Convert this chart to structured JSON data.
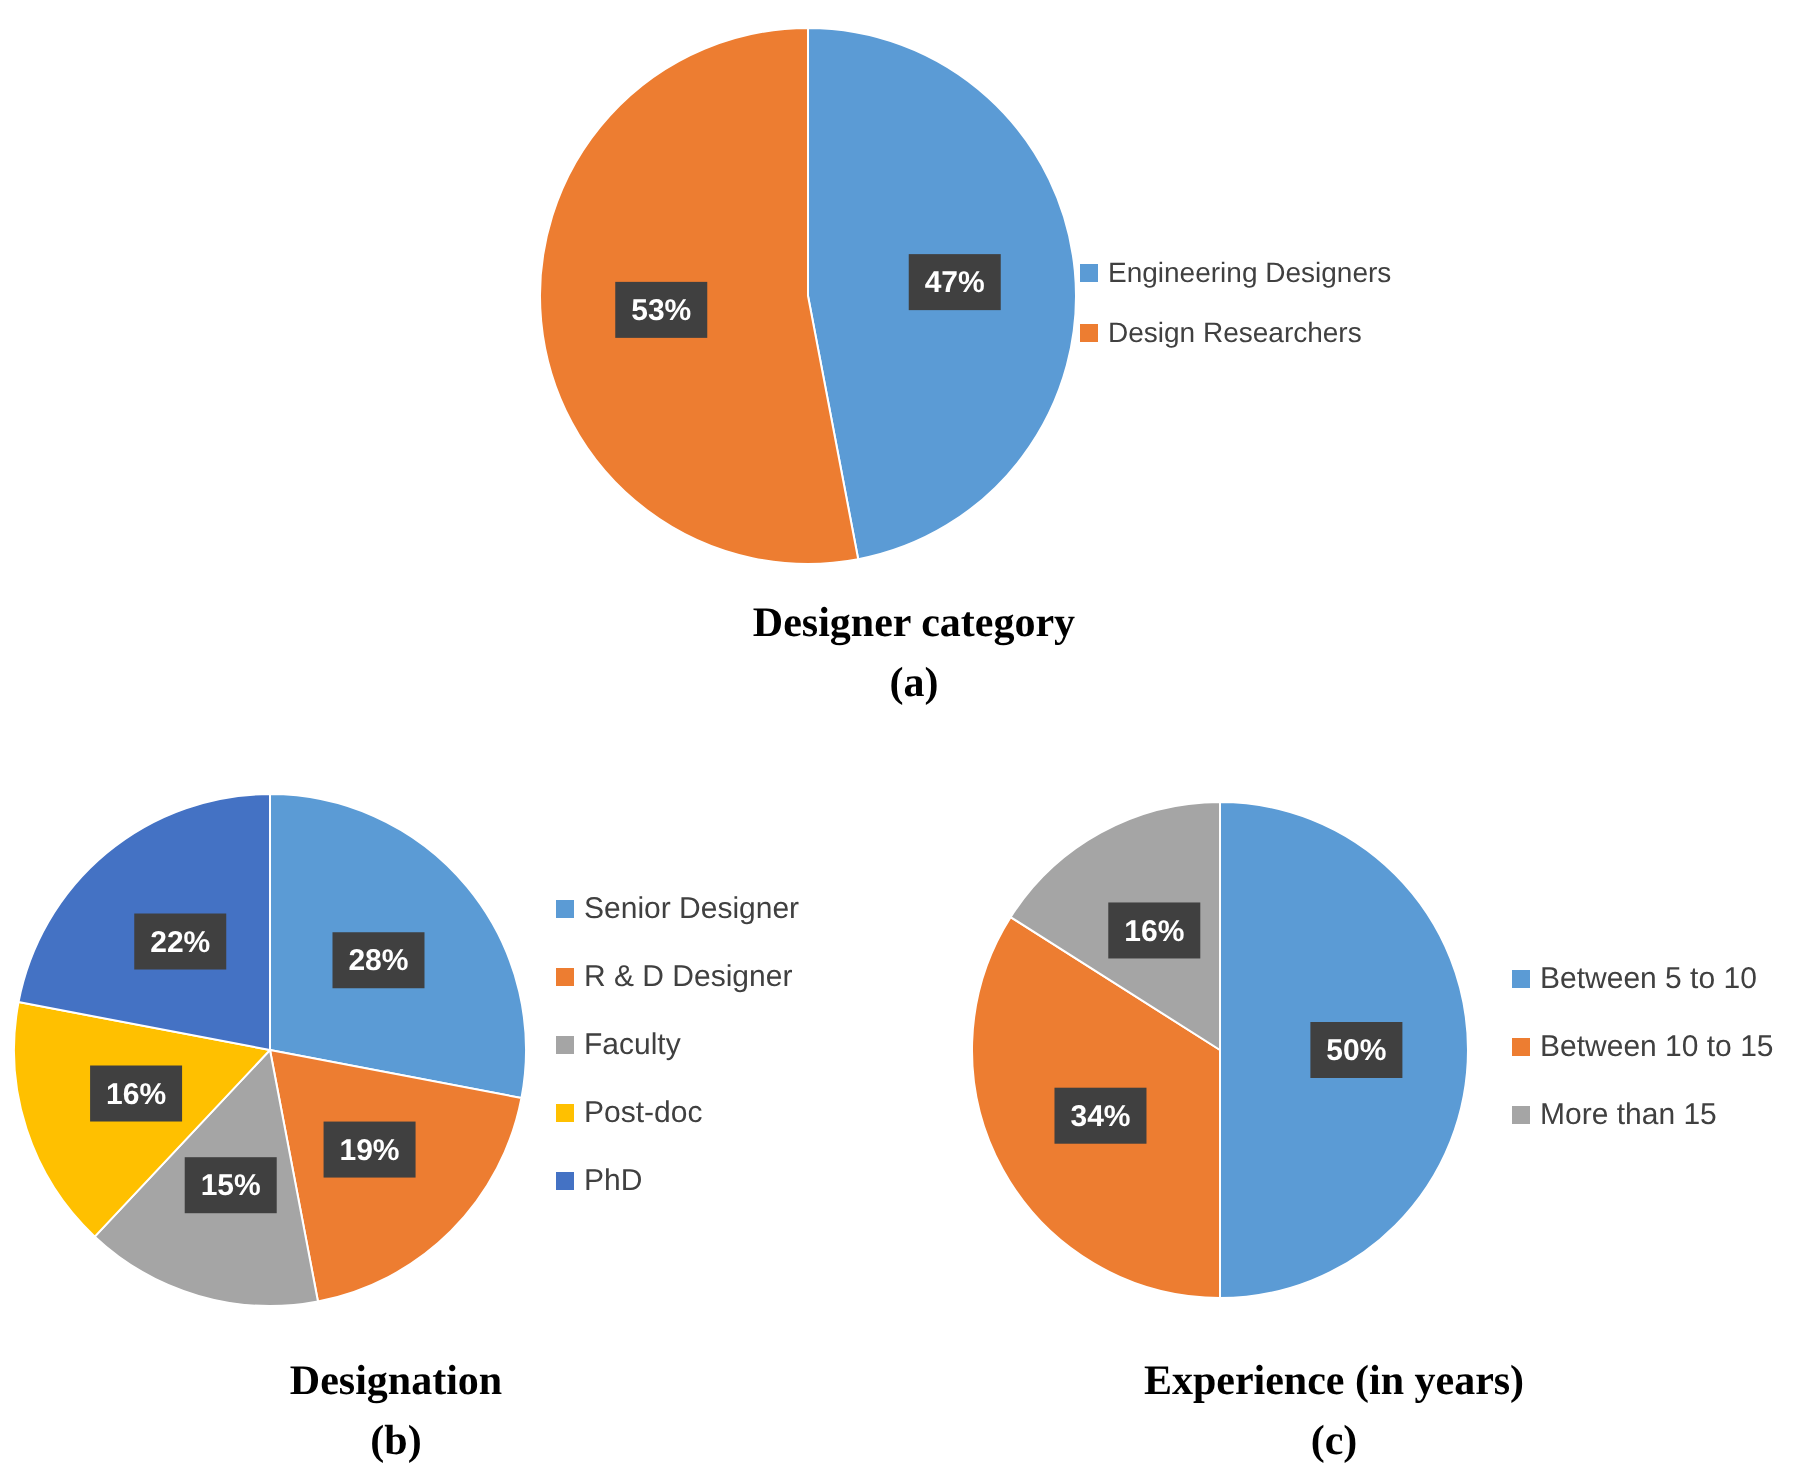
{
  "chart_data": [
    {
      "type": "pie",
      "title": "Designer category",
      "subtitle": "(a)",
      "categories": [
        "Engineering Designers",
        "Design Researchers"
      ],
      "values": [
        47,
        53
      ],
      "value_labels": [
        "47%",
        "53%"
      ],
      "colors": [
        "#5b9bd5",
        "#ed7d31"
      ],
      "legend": "right"
    },
    {
      "type": "pie",
      "title": "Designation",
      "subtitle": "(b)",
      "categories": [
        "Senior Designer",
        "R & D Designer",
        "Faculty",
        "Post-doc",
        "PhD"
      ],
      "values": [
        28,
        19,
        15,
        16,
        22
      ],
      "value_labels": [
        "28%",
        "19%",
        "15%",
        "16%",
        "22%"
      ],
      "colors": [
        "#5b9bd5",
        "#ed7d31",
        "#a5a5a5",
        "#ffc000",
        "#4472c4"
      ],
      "legend": "right"
    },
    {
      "type": "pie",
      "title": "Experience (in years)",
      "subtitle": "(c)",
      "categories": [
        "Between 5 to 10",
        "Between 10 to 15",
        "More than 15"
      ],
      "values": [
        50,
        34,
        16
      ],
      "value_labels": [
        "50%",
        "34%",
        "16%"
      ],
      "colors": [
        "#5b9bd5",
        "#ed7d31",
        "#a5a5a5"
      ],
      "legend": "right"
    }
  ]
}
